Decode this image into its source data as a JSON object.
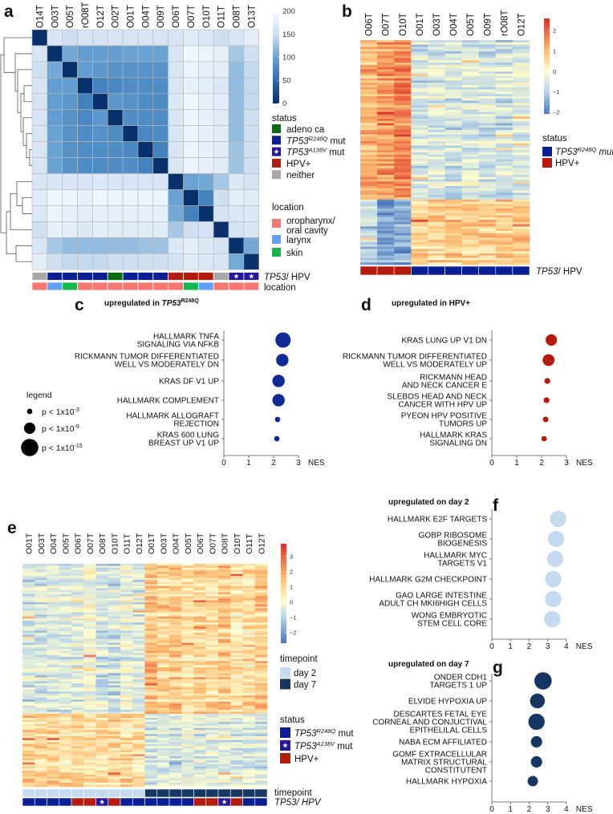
{
  "panel_labels": {
    "a": "a",
    "b": "b",
    "c": "c",
    "d": "d",
    "e": "e",
    "f": "f",
    "g": "g"
  },
  "colors": {
    "adeno": "#0b6b12",
    "r248q": "#0a1e96",
    "a138v": "#26189a",
    "hpv": "#b51c0e",
    "neither": "#a8a8a8",
    "oro": "#f7766f",
    "larynx": "#62a0f6",
    "skin": "#13b84a",
    "day2": "#c5d9f0",
    "day7": "#173763"
  },
  "chart_data": [
    {
      "type": "heatmap",
      "panel": "a",
      "columns": [
        "O14T",
        "O03T",
        "O05T",
        "rO08T",
        "O12T",
        "O02T",
        "O01T",
        "O04T",
        "O09T",
        "O06T",
        "O07T",
        "O10T",
        "O11T",
        "O08T",
        "O13T"
      ],
      "matrix": [
        [
          0,
          160,
          150,
          160,
          158,
          160,
          160,
          160,
          160,
          160,
          170,
          165,
          150,
          160,
          175
        ],
        [
          160,
          0,
          105,
          95,
          95,
          95,
          100,
          100,
          100,
          160,
          190,
          185,
          180,
          130,
          150
        ],
        [
          150,
          105,
          0,
          95,
          90,
          85,
          85,
          85,
          85,
          160,
          185,
          180,
          175,
          120,
          145
        ],
        [
          160,
          95,
          95,
          0,
          70,
          75,
          80,
          80,
          80,
          160,
          180,
          175,
          165,
          120,
          145
        ],
        [
          158,
          95,
          90,
          70,
          0,
          90,
          85,
          80,
          80,
          165,
          190,
          180,
          175,
          120,
          145
        ],
        [
          160,
          95,
          85,
          75,
          90,
          0,
          80,
          80,
          80,
          160,
          185,
          180,
          170,
          120,
          150
        ],
        [
          160,
          100,
          85,
          80,
          85,
          80,
          0,
          75,
          80,
          160,
          185,
          180,
          170,
          120,
          150
        ],
        [
          160,
          100,
          85,
          80,
          80,
          80,
          75,
          0,
          70,
          160,
          185,
          180,
          170,
          125,
          150
        ],
        [
          160,
          100,
          85,
          80,
          80,
          80,
          80,
          70,
          0,
          160,
          185,
          180,
          170,
          125,
          150
        ],
        [
          160,
          160,
          160,
          160,
          165,
          160,
          160,
          160,
          160,
          0,
          100,
          105,
          130,
          165,
          155
        ],
        [
          170,
          190,
          185,
          180,
          190,
          185,
          185,
          185,
          185,
          100,
          0,
          70,
          150,
          175,
          170
        ],
        [
          165,
          185,
          180,
          175,
          180,
          180,
          180,
          180,
          180,
          105,
          70,
          0,
          155,
          165,
          165
        ],
        [
          150,
          180,
          175,
          165,
          175,
          170,
          170,
          170,
          170,
          130,
          150,
          155,
          0,
          155,
          160
        ],
        [
          160,
          130,
          120,
          120,
          120,
          120,
          120,
          125,
          125,
          165,
          175,
          165,
          155,
          0,
          105
        ],
        [
          175,
          150,
          145,
          145,
          145,
          150,
          150,
          150,
          150,
          155,
          170,
          165,
          160,
          105,
          0
        ]
      ],
      "colorbar": {
        "range": [
          0,
          200
        ],
        "ticks": [
          200,
          150,
          100,
          50,
          0
        ],
        "tick_labels": [
          "200",
          "150",
          "100",
          "50",
          "0"
        ]
      },
      "status_row": {
        "label_italic": "TP53",
        "label_rest": "/ HPV",
        "values": [
          "neither",
          "r248q",
          "r248q",
          "r248q",
          "r248q",
          "adeno",
          "r248q",
          "r248q",
          "r248q",
          "hpv",
          "hpv",
          "hpv",
          "neither",
          "a138v",
          "a138v"
        ]
      },
      "location_row": {
        "label": "location",
        "values": [
          "oro",
          "larynx",
          "skin",
          "oro",
          "oro",
          "oro",
          "oro",
          "oro",
          "oro",
          "oro",
          "skin",
          "larynx",
          "oro",
          "oro",
          "oro"
        ]
      },
      "legend_status": {
        "title": "status",
        "items": [
          {
            "key": "adeno",
            "base": "adeno ca",
            "sup": "",
            "suffix": ""
          },
          {
            "key": "r248q",
            "base": "TP53",
            "sup": "R248Q",
            "suffix": " mut"
          },
          {
            "key": "a138v",
            "base": "TP53",
            "sup": "A138V",
            "suffix": " mut"
          },
          {
            "key": "hpv",
            "base": "HPV+",
            "sup": "",
            "suffix": ""
          },
          {
            "key": "neither",
            "base": "neither",
            "sup": "",
            "suffix": ""
          }
        ]
      },
      "legend_location": {
        "title": "location",
        "items": [
          {
            "key": "oro",
            "lines": [
              "oropharynx/",
              "oral cavity"
            ]
          },
          {
            "key": "larynx",
            "lines": [
              "larynx"
            ]
          },
          {
            "key": "skin",
            "lines": [
              "skin"
            ]
          }
        ]
      }
    },
    {
      "type": "heatmap",
      "panel": "b",
      "columns": [
        "O06T",
        "O07T",
        "O10T",
        "O01T",
        "O03T",
        "O04T",
        "O05T",
        "O09T",
        "rO08T",
        "O12T"
      ],
      "blocks": [
        {
          "gene_fraction": 0.71,
          "column_means": [
            1.1,
            1.4,
            1.7,
            -0.6,
            -0.5,
            -0.6,
            -0.5,
            -0.6,
            -0.6,
            -0.5
          ]
        },
        {
          "gene_fraction": 0.29,
          "column_means": [
            -1.0,
            -1.8,
            -1.6,
            0.7,
            0.6,
            0.7,
            0.7,
            0.7,
            0.8,
            0.8
          ]
        }
      ],
      "colorbar": {
        "range": [
          -2.1,
          2.6
        ],
        "ticks": [
          2,
          1,
          0,
          -1,
          -2
        ],
        "tick_labels": [
          "2",
          "1",
          "0",
          "−1",
          "−2"
        ]
      },
      "status_row": {
        "label_italic": "TP53",
        "label_rest": "/ HPV",
        "values": [
          "hpv",
          "hpv",
          "hpv",
          "r248q",
          "r248q",
          "r248q",
          "r248q",
          "r248q",
          "r248q",
          "r248q"
        ]
      },
      "legend_status": {
        "title": "status",
        "items": [
          {
            "key": "r248q",
            "base": "TP53",
            "sup": "R248Q",
            "suffix": " mut"
          },
          {
            "key": "hpv",
            "base": "HPV+",
            "sup": "",
            "suffix": ""
          }
        ]
      }
    },
    {
      "type": "scatter",
      "panel": "c",
      "title": {
        "text": "upregulated in ",
        "italic": "TP53",
        "sup": "R248Q"
      },
      "xlabel": "NES",
      "xlim": [
        0,
        3
      ],
      "xticks": [
        0,
        1,
        2,
        3
      ],
      "xtick_labels": [
        "0",
        "1",
        "2",
        "3"
      ],
      "color": "#0f2a97",
      "rows": [
        {
          "label": [
            "HALLMARK TNFA",
            "SIGNALING VIA NFKB"
          ],
          "nes": 2.38,
          "neg_log10_p": 13
        },
        {
          "label": [
            "RICKMANN TUMOR DIFFERENTIATED",
            "WELL VS MODERATELY DN"
          ],
          "nes": 2.35,
          "neg_log10_p": 10
        },
        {
          "label": [
            "KRAS DF V1 UP"
          ],
          "nes": 2.2,
          "neg_log10_p": 10
        },
        {
          "label": [
            "HALLMARK COMPLEMENT"
          ],
          "nes": 2.2,
          "neg_log10_p": 10
        },
        {
          "label": [
            "HALLMARK ALLOGRAFT",
            "REJECTION"
          ],
          "nes": 2.16,
          "neg_log10_p": 3
        },
        {
          "label": [
            "KRAS 600 LUNG",
            "BREAST UP V1 UP"
          ],
          "nes": 2.13,
          "neg_log10_p": 3
        }
      ],
      "size_legend": {
        "title": "legend",
        "items": [
          {
            "text": "p < 1x10",
            "exp": "-3",
            "neg_log10_p": 3
          },
          {
            "text": "p < 1x10",
            "exp": "-9",
            "neg_log10_p": 9
          },
          {
            "text": "p < 1x10",
            "exp": "-15",
            "neg_log10_p": 15
          }
        ]
      }
    },
    {
      "type": "scatter",
      "panel": "d",
      "title": {
        "text": "upregulated in HPV+"
      },
      "xlabel": "NES",
      "xlim": [
        0,
        3
      ],
      "xticks": [
        0,
        1,
        2,
        3
      ],
      "xtick_labels": [
        "0",
        "1",
        "2",
        "3"
      ],
      "color": "#b51c0e",
      "rows": [
        {
          "label": [
            "KRAS LUNG UP V1 DN"
          ],
          "nes": 2.39,
          "neg_log10_p": 9
        },
        {
          "label": [
            "RICKMANN TUMOR DIFFERENTIATED",
            "WELL VS MODERATELY UP"
          ],
          "nes": 2.28,
          "neg_log10_p": 9.5
        },
        {
          "label": [
            "RICKMANN HEAD",
            "AND NECK CANCER E"
          ],
          "nes": 2.23,
          "neg_log10_p": 3.5
        },
        {
          "label": [
            "SLEBOS HEAD AND NECK",
            "CANCER WITH HPV UP"
          ],
          "nes": 2.2,
          "neg_log10_p": 3.5
        },
        {
          "label": [
            "PYEON HPV POSITIVE",
            "TUMORS UP"
          ],
          "nes": 2.16,
          "neg_log10_p": 3.2
        },
        {
          "label": [
            "HALLMARK KRAS",
            "SIGNALING DN"
          ],
          "nes": 2.1,
          "neg_log10_p": 3
        }
      ]
    },
    {
      "type": "heatmap",
      "panel": "e",
      "columns": [
        "O01T",
        "O03T",
        "O04T",
        "O05T",
        "O06T",
        "O07T",
        "O08T",
        "O10T",
        "O11T",
        "O12T",
        "O01T",
        "O03T",
        "O04T",
        "O05T",
        "O06T",
        "O07T",
        "O08T",
        "O10T",
        "O11T",
        "O12T"
      ],
      "blocks": [
        {
          "gene_fraction": 0.67,
          "column_means": [
            -0.6,
            -0.6,
            -0.5,
            -0.5,
            -0.4,
            -0.2,
            -0.6,
            -0.7,
            -0.3,
            -0.5,
            0.9,
            0.7,
            0.8,
            0.4,
            0.7,
            0.5,
            0.9,
            0.4,
            0.5,
            0.8
          ]
        },
        {
          "gene_fraction": 0.33,
          "column_means": [
            0.6,
            0.5,
            0.6,
            0.5,
            0.6,
            0.4,
            0.5,
            0.6,
            0.5,
            0.4,
            -0.6,
            -0.5,
            -0.6,
            -0.4,
            -0.5,
            -0.4,
            -0.5,
            -0.6,
            -0.5,
            -0.6
          ]
        }
      ],
      "colorbar": {
        "range": [
          -2.7,
          3.8
        ],
        "ticks": [
          3,
          2,
          1,
          0,
          -1,
          -2
        ],
        "tick_labels": [
          "3",
          "2",
          "1",
          "0",
          "−1",
          "−2"
        ]
      },
      "timepoint_row": {
        "label": "timepoint",
        "values": [
          "day2",
          "day2",
          "day2",
          "day2",
          "day2",
          "day2",
          "day2",
          "day2",
          "day2",
          "day2",
          "day7",
          "day7",
          "day7",
          "day7",
          "day7",
          "day7",
          "day7",
          "day7",
          "day7",
          "day7"
        ]
      },
      "status_row": {
        "label": "TP53/ HPV",
        "values": [
          "r248q",
          "r248q",
          "r248q",
          "r248q",
          "hpv",
          "hpv",
          "a138v",
          "hpv",
          "r248q",
          "r248q",
          "r248q",
          "r248q",
          "r248q",
          "r248q",
          "hpv",
          "hpv",
          "a138v",
          "hpv",
          "r248q",
          "r248q"
        ]
      },
      "legend_timepoint": {
        "title": "timepoint",
        "items": [
          {
            "key": "day2",
            "label": "day 2"
          },
          {
            "key": "day7",
            "label": "day 7"
          }
        ]
      },
      "legend_status": {
        "title": "status",
        "items": [
          {
            "key": "r248q",
            "base": "TP53",
            "sup": "R248Q",
            "suffix": " mut"
          },
          {
            "key": "a138v",
            "base": "TP53",
            "sup": "A138V",
            "suffix": " mut"
          },
          {
            "key": "hpv",
            "base": "HPV+",
            "sup": "",
            "suffix": ""
          }
        ]
      }
    },
    {
      "type": "scatter",
      "panel": "f",
      "title": {
        "text": "upregulated on day 2"
      },
      "xlabel": "NES",
      "xlim": [
        0,
        4
      ],
      "xticks": [
        0,
        1,
        2,
        3,
        4
      ],
      "xtick_labels": [
        "0",
        "1",
        "2",
        "3",
        "4"
      ],
      "color": "#c5d9f0",
      "rows": [
        {
          "label": [
            "HALLMARK E2F TARGETS"
          ],
          "nes": 3.56,
          "neg_log10_p": 14
        },
        {
          "label": [
            "GOBP RIBOSOME",
            "BIOGENESIS"
          ],
          "nes": 3.45,
          "neg_log10_p": 14
        },
        {
          "label": [
            "HALLMARK MYC",
            "TARGETS V1"
          ],
          "nes": 3.4,
          "neg_log10_p": 14
        },
        {
          "label": [
            "HALLMARK G2M CHECKPOINT"
          ],
          "nes": 3.3,
          "neg_log10_p": 14
        },
        {
          "label": [
            "GAO LARGE INTESTINE",
            "ADULT CH MKI6HIGH CELLS"
          ],
          "nes": 3.3,
          "neg_log10_p": 14
        },
        {
          "label": [
            "WONG EMBRYOTIC",
            "STEM CELL CORE"
          ],
          "nes": 3.25,
          "neg_log10_p": 14
        }
      ]
    },
    {
      "type": "scatter",
      "panel": "g",
      "title": {
        "text": "upregulated on day 7"
      },
      "xlabel": "NES",
      "xlim": [
        0,
        4
      ],
      "xticks": [
        0,
        1,
        2,
        3,
        4
      ],
      "xtick_labels": [
        "0",
        "1",
        "2",
        "3",
        "4"
      ],
      "color": "#173763",
      "rows": [
        {
          "label": [
            "ONDER CDH1",
            "TARGETS 1 UP"
          ],
          "nes": 2.75,
          "neg_log10_p": 15
        },
        {
          "label": [
            "ELVIDE HYPOXIA UP"
          ],
          "nes": 2.45,
          "neg_log10_p": 12.5
        },
        {
          "label": [
            "DESCARTES FETAL EYE",
            "CORNEAL AND CONJUCTIVAL",
            "EPITHELILAL CELLS"
          ],
          "nes": 2.4,
          "neg_log10_p": 14
        },
        {
          "label": [
            "NABA ECM AFFILIATED"
          ],
          "nes": 2.4,
          "neg_log10_p": 9
        },
        {
          "label": [
            "GOMF EXTRACELLULAR",
            "MATRIX STRUCTURAL",
            "CONSTITUTENT"
          ],
          "nes": 2.4,
          "neg_log10_p": 9
        },
        {
          "label": [
            "HALLMARK HYPOXIA"
          ],
          "nes": 2.2,
          "neg_log10_p": 8
        }
      ]
    }
  ]
}
